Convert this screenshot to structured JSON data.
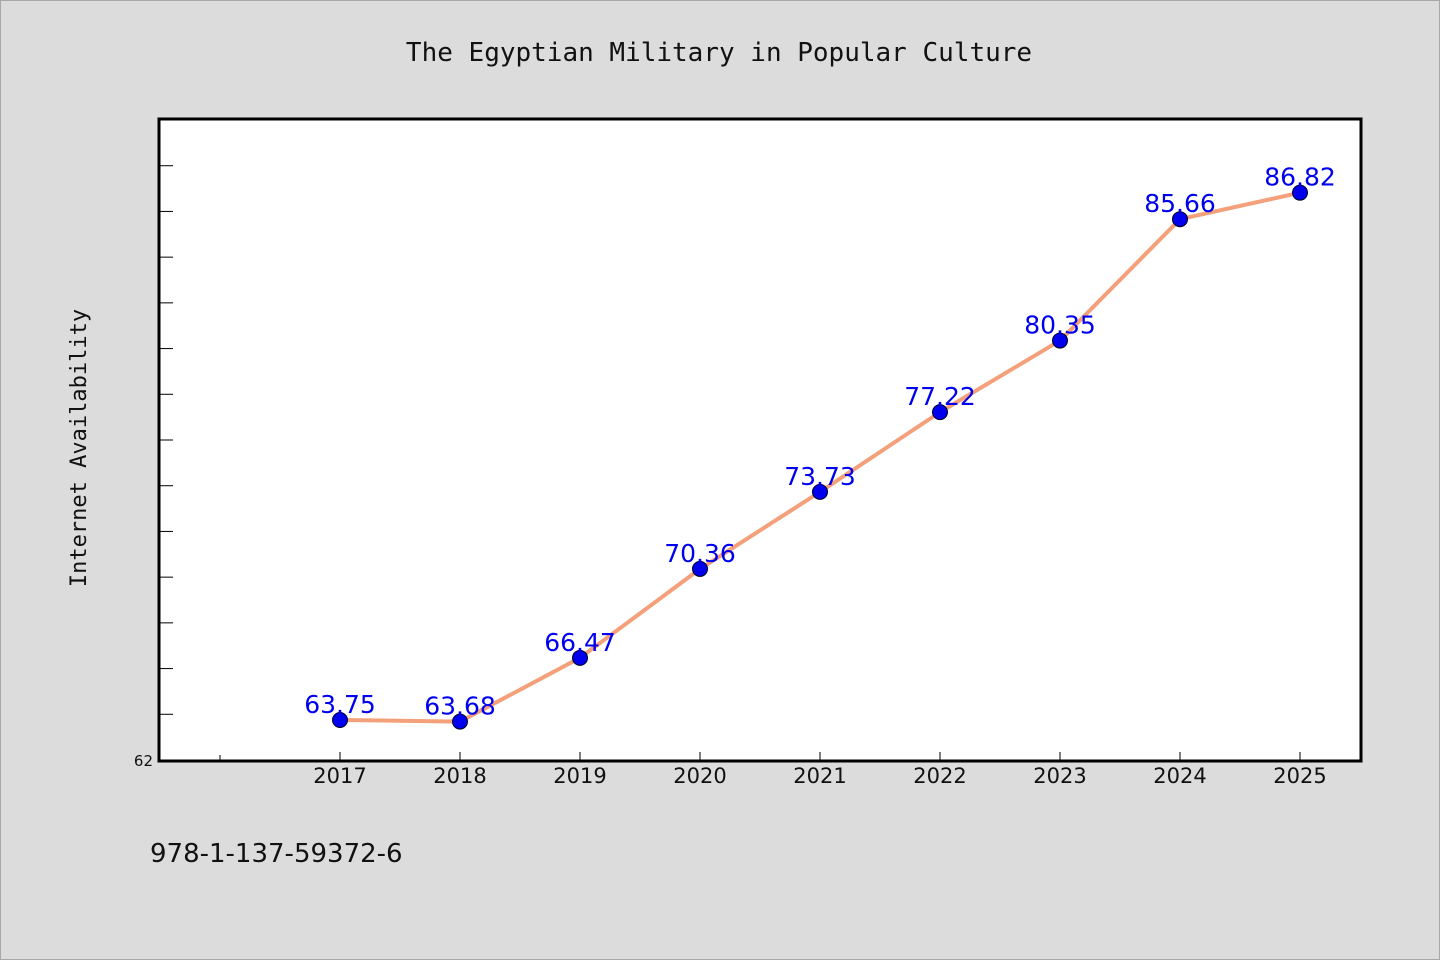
{
  "chart_data": {
    "type": "line",
    "title": "The Egyptian Military in Popular Culture",
    "xlabel": "",
    "ylabel": "Internet Availability",
    "x": [
      "2017",
      "2018",
      "2019",
      "2020",
      "2021",
      "2022",
      "2023",
      "2024",
      "2025"
    ],
    "series": [
      {
        "values": [
          63.75,
          63.68,
          66.47,
          70.36,
          73.73,
          77.22,
          80.35,
          85.66,
          86.82
        ],
        "labels": [
          "63.75",
          "63.68",
          "66.47",
          "70.36",
          "73.73",
          "77.22",
          "80.35",
          "85.66",
          "86.82"
        ]
      }
    ],
    "y_tick_labels": [
      "62"
    ],
    "ylim": [
      62,
      90
    ],
    "grid": false,
    "line_color": "#f4a07a",
    "marker_color": "#0000ee",
    "label_color": "#0000ee"
  },
  "footer": {
    "isbn": "978-1-137-59372-6"
  }
}
